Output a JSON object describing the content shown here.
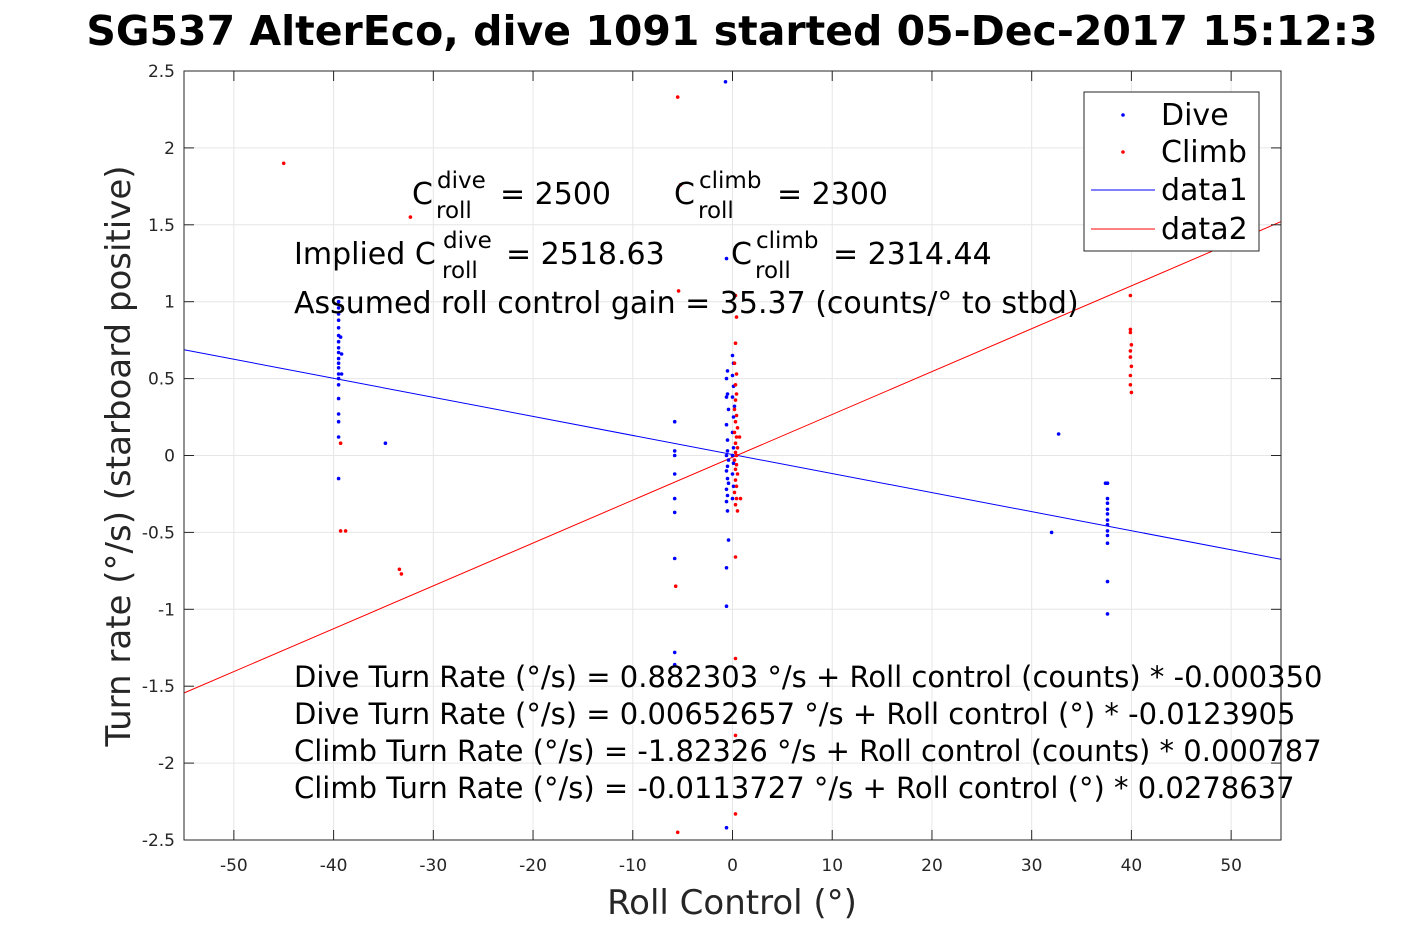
{
  "chart_data": {
    "type": "scatter",
    "title": "SG537 AlterEco, dive 1091 started 05-Dec-2017 15:12:3",
    "xlabel": "Roll Control (°)",
    "ylabel": "Turn rate (°/s) (starboard positive)",
    "xlim": [
      -55,
      55
    ],
    "ylim": [
      -2.5,
      2.5
    ],
    "xticks": [
      -50,
      -40,
      -30,
      -20,
      -10,
      0,
      10,
      20,
      30,
      40,
      50
    ],
    "yticks": [
      -2.5,
      -2,
      -1.5,
      -1,
      -0.5,
      0,
      0.5,
      1,
      1.5,
      2,
      2.5
    ],
    "xtick_labels": [
      "-50",
      "-40",
      "-30",
      "-20",
      "-10",
      "0",
      "10",
      "20",
      "30",
      "40",
      "50"
    ],
    "ytick_labels": [
      "-2.5",
      "-2",
      "-1.5",
      "-1",
      "-0.5",
      "0",
      "0.5",
      "1",
      "1.5",
      "2",
      "2.5"
    ],
    "grid": true,
    "legend_position": "top-right",
    "series": [
      {
        "name": "Dive",
        "kind": "points",
        "color": "#0000ff",
        "points": [
          [
            -39.5,
            1.0
          ],
          [
            -39.5,
            0.96
          ],
          [
            -39.5,
            0.92
          ],
          [
            -39.5,
            0.88
          ],
          [
            -39.5,
            0.83
          ],
          [
            -39.5,
            0.78
          ],
          [
            -39.5,
            0.74
          ],
          [
            -39.5,
            0.7
          ],
          [
            -39.5,
            0.67
          ],
          [
            -39.5,
            0.63
          ],
          [
            -39.5,
            0.6
          ],
          [
            -39.5,
            0.57
          ],
          [
            -39.5,
            0.53
          ],
          [
            -39.5,
            0.5
          ],
          [
            -39.5,
            0.46
          ],
          [
            -39.5,
            0.37
          ],
          [
            -39.5,
            0.27
          ],
          [
            -39.5,
            0.22
          ],
          [
            -39.5,
            0.12
          ],
          [
            -39.5,
            -0.15
          ],
          [
            -39.3,
            0.77
          ],
          [
            -39.2,
            0.66
          ],
          [
            -39.2,
            0.53
          ],
          [
            -34.8,
            0.08
          ],
          [
            -5.8,
            0.22
          ],
          [
            -5.8,
            0.03
          ],
          [
            -5.8,
            0.0
          ],
          [
            -5.8,
            -0.12
          ],
          [
            -5.8,
            -0.28
          ],
          [
            -5.8,
            -0.37
          ],
          [
            -5.8,
            -0.67
          ],
          [
            -5.8,
            -1.28
          ],
          [
            -5.8,
            -1.36
          ],
          [
            -0.7,
            2.43
          ],
          [
            -0.6,
            1.28
          ],
          [
            -0.5,
            0.55
          ],
          [
            -0.6,
            0.5
          ],
          [
            -0.5,
            0.4
          ],
          [
            -0.6,
            0.38
          ],
          [
            -0.4,
            0.3
          ],
          [
            -0.6,
            0.2
          ],
          [
            -0.5,
            0.1
          ],
          [
            -0.5,
            0.03
          ],
          [
            -0.6,
            0.0
          ],
          [
            -0.4,
            -0.03
          ],
          [
            -0.5,
            -0.07
          ],
          [
            -0.6,
            -0.1
          ],
          [
            -0.5,
            -0.15
          ],
          [
            -0.4,
            -0.18
          ],
          [
            -0.6,
            -0.22
          ],
          [
            -0.5,
            -0.26
          ],
          [
            -0.6,
            -0.3
          ],
          [
            -0.5,
            -0.36
          ],
          [
            -0.4,
            -0.55
          ],
          [
            -0.6,
            -0.73
          ],
          [
            -0.6,
            -0.98
          ],
          [
            -0.6,
            -2.42
          ],
          [
            0.0,
            0.65
          ],
          [
            0.1,
            0.6
          ],
          [
            0.0,
            0.52
          ],
          [
            0.1,
            0.45
          ],
          [
            0.0,
            0.38
          ],
          [
            0.2,
            0.32
          ],
          [
            0.1,
            0.25
          ],
          [
            0.0,
            0.15
          ],
          [
            0.1,
            0.05
          ],
          [
            0.0,
            0.0
          ],
          [
            0.1,
            -0.05
          ],
          [
            0.0,
            -0.12
          ],
          [
            0.1,
            -0.2
          ],
          [
            0.0,
            -0.28
          ],
          [
            32.0,
            -0.5
          ],
          [
            32.7,
            0.14
          ],
          [
            37.4,
            -0.18
          ],
          [
            37.6,
            -0.18
          ],
          [
            37.6,
            -0.28
          ],
          [
            37.6,
            -0.31
          ],
          [
            37.6,
            -0.35
          ],
          [
            37.6,
            -0.38
          ],
          [
            37.6,
            -0.42
          ],
          [
            37.6,
            -0.45
          ],
          [
            37.6,
            -0.49
          ],
          [
            37.6,
            -0.52
          ],
          [
            37.6,
            -0.57
          ],
          [
            37.6,
            -0.82
          ],
          [
            37.6,
            -1.03
          ]
        ]
      },
      {
        "name": "Climb",
        "kind": "points",
        "color": "#ff0000",
        "points": [
          [
            -45.0,
            1.9
          ],
          [
            -32.3,
            1.55
          ],
          [
            -39.3,
            0.08
          ],
          [
            -39.3,
            -0.49
          ],
          [
            -38.8,
            -0.49
          ],
          [
            -33.4,
            -0.74
          ],
          [
            -33.2,
            -0.77
          ],
          [
            -5.5,
            2.33
          ],
          [
            -5.2,
            1.76
          ],
          [
            -5.4,
            1.07
          ],
          [
            -5.7,
            -0.85
          ],
          [
            -5.5,
            -2.45
          ],
          [
            0.3,
            1.04
          ],
          [
            0.4,
            0.9
          ],
          [
            0.3,
            0.73
          ],
          [
            0.2,
            0.6
          ],
          [
            0.4,
            0.53
          ],
          [
            0.3,
            0.46
          ],
          [
            0.4,
            0.4
          ],
          [
            0.3,
            0.36
          ],
          [
            0.2,
            0.3
          ],
          [
            0.4,
            0.26
          ],
          [
            0.3,
            0.22
          ],
          [
            0.5,
            0.18
          ],
          [
            0.2,
            0.15
          ],
          [
            0.4,
            0.12
          ],
          [
            0.3,
            0.08
          ],
          [
            0.5,
            0.05
          ],
          [
            0.3,
            0.02
          ],
          [
            0.4,
            0.0
          ],
          [
            0.2,
            -0.03
          ],
          [
            0.4,
            -0.06
          ],
          [
            0.3,
            -0.09
          ],
          [
            0.5,
            -0.12
          ],
          [
            0.3,
            -0.16
          ],
          [
            0.4,
            -0.2
          ],
          [
            0.2,
            -0.24
          ],
          [
            0.4,
            -0.28
          ],
          [
            0.3,
            -0.32
          ],
          [
            0.5,
            -0.36
          ],
          [
            0.8,
            -0.28
          ],
          [
            0.7,
            0.12
          ],
          [
            0.3,
            -0.66
          ],
          [
            0.3,
            -1.32
          ],
          [
            0.3,
            -1.82
          ],
          [
            0.3,
            -2.33
          ],
          [
            39.9,
            1.04
          ],
          [
            39.9,
            0.82
          ],
          [
            39.9,
            0.8
          ],
          [
            40.0,
            0.72
          ],
          [
            39.9,
            0.68
          ],
          [
            39.9,
            0.64
          ],
          [
            40.0,
            0.58
          ],
          [
            39.9,
            0.52
          ],
          [
            39.9,
            0.46
          ],
          [
            40.0,
            0.41
          ]
        ]
      },
      {
        "name": "data1",
        "kind": "line",
        "color": "#0000ff",
        "x": [
          -55,
          55
        ],
        "y": [
          0.688,
          -0.675
        ]
      },
      {
        "name": "data2",
        "kind": "line",
        "color": "#ff0000",
        "x": [
          -55,
          55
        ],
        "y": [
          -1.544,
          1.521
        ]
      }
    ],
    "annotations": {
      "c_roll_dive_value": "= 2500",
      "c_roll_climb_value": "= 2300",
      "implied_prefix": "Implied C",
      "implied_dive_value": "= 2518.63",
      "implied_climb_prefix": "C",
      "implied_climb_value": "= 2314.44",
      "c_symbol": "C",
      "sup_dive": "dive",
      "sup_climb": "climb",
      "sub_roll": "roll",
      "gain_text": "Assumed roll control gain = 35.37 (counts/° to stbd)",
      "equations": [
        "Dive Turn Rate (°/s) = 0.882303 °/s + Roll control (counts) * -0.000350",
        "Dive Turn Rate (°/s) = 0.00652657 °/s + Roll control (°) * -0.0123905",
        "Climb Turn Rate (°/s) = -1.82326 °/s + Roll control (counts) * 0.000787",
        "Climb Turn Rate (°/s) = -0.0113727 °/s + Roll control (°) * 0.0278637"
      ]
    }
  }
}
